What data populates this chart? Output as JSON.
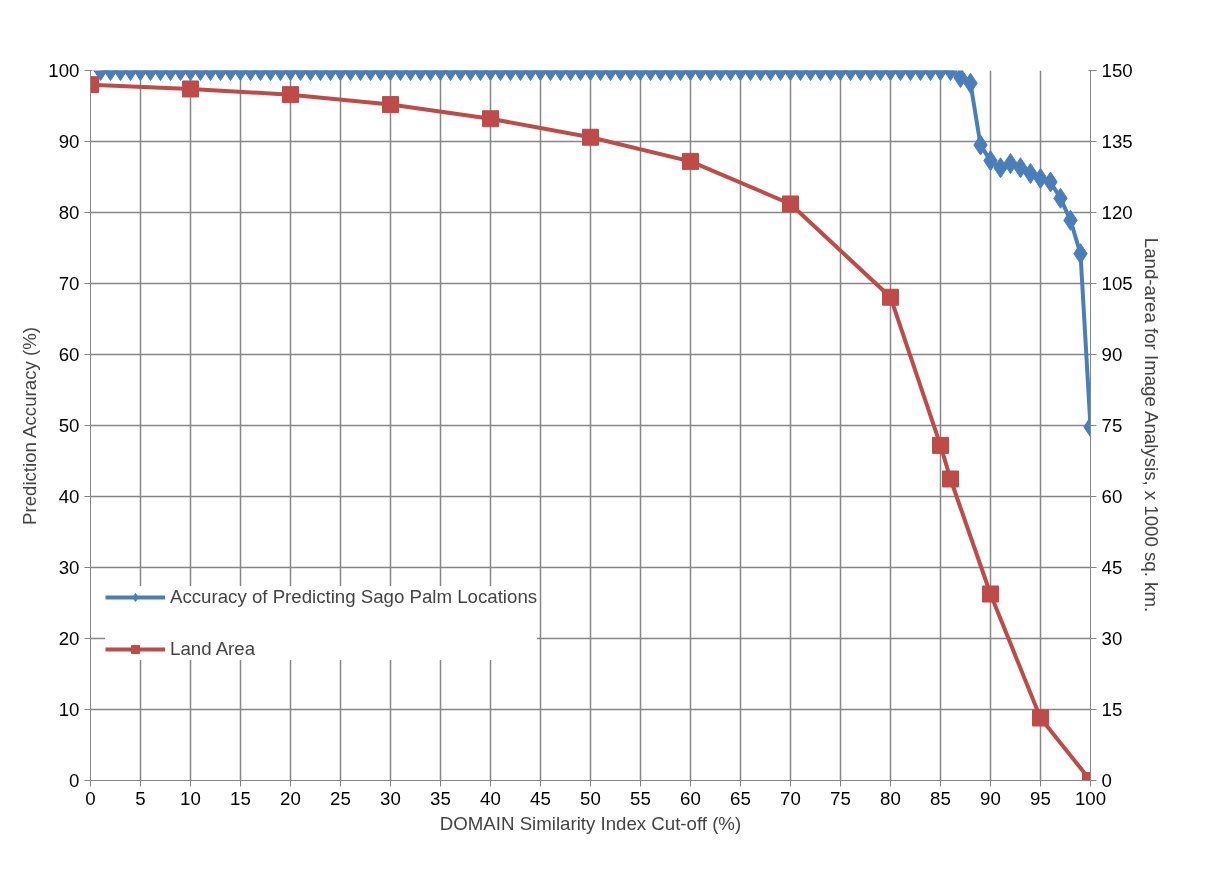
{
  "chart_data": {
    "type": "line",
    "xlabel": "DOMAIN Similarity Index Cut-off (%)",
    "ylabel": "Prediction Accuracy (%)",
    "y2label": "Land-area for Image Analysis, x 1000 sq. km.",
    "xlim": [
      0,
      100
    ],
    "xticks": [
      0,
      5,
      10,
      15,
      20,
      25,
      30,
      35,
      40,
      45,
      50,
      55,
      60,
      65,
      70,
      75,
      80,
      85,
      90,
      95,
      100
    ],
    "ylim": [
      0,
      100
    ],
    "yticks": [
      0,
      10,
      20,
      30,
      40,
      50,
      60,
      70,
      80,
      90,
      100
    ],
    "y2lim": [
      0,
      150
    ],
    "y2ticks": [
      0,
      15,
      30,
      45,
      60,
      75,
      90,
      105,
      120,
      135,
      150
    ],
    "grid": true,
    "legend": "left",
    "line_style": "solid",
    "series": [
      {
        "name": "Accuracy of Predicting Sago Palm Locations",
        "color": "#4a7ebb",
        "marker": "diamond",
        "x": [
          1,
          2,
          3,
          4,
          5,
          6,
          7,
          8,
          9,
          10,
          11,
          12,
          13,
          14,
          15,
          16,
          17,
          18,
          19,
          20,
          21,
          22,
          23,
          24,
          25,
          26,
          27,
          28,
          29,
          30,
          31,
          32,
          33,
          34,
          35,
          36,
          37,
          38,
          39,
          40,
          41,
          42,
          43,
          44,
          45,
          46,
          47,
          48,
          49,
          50,
          51,
          52,
          53,
          54,
          55,
          56,
          57,
          58,
          59,
          60,
          61,
          62,
          63,
          64,
          65,
          66,
          67,
          68,
          69,
          70,
          71,
          72,
          73,
          74,
          75,
          76,
          77,
          78,
          79,
          80,
          81,
          82,
          83,
          84,
          85,
          86,
          87,
          88,
          89,
          90,
          91,
          92,
          93,
          94,
          95,
          96,
          97,
          98,
          99,
          100
        ],
        "values": [
          100,
          100,
          100,
          100,
          100,
          100,
          100,
          100,
          100,
          100,
          100,
          100,
          100,
          100,
          100,
          100,
          100,
          100,
          100,
          100,
          100,
          100,
          100,
          100,
          100,
          100,
          100,
          100,
          100,
          100,
          100,
          100,
          100,
          100,
          100,
          100,
          100,
          100,
          100,
          100,
          100,
          100,
          100,
          100,
          100,
          100,
          100,
          100,
          100,
          100,
          100,
          100,
          100,
          100,
          100,
          100,
          100,
          100,
          100,
          100,
          100,
          100,
          100,
          100,
          100,
          100,
          100,
          100,
          100,
          100,
          100,
          100,
          100,
          100,
          100,
          100,
          100,
          100,
          100,
          100,
          100,
          100,
          100,
          100,
          100,
          100,
          99,
          98.2,
          89.5,
          87.3,
          86.3,
          86.9,
          86.3,
          85.5,
          84.8,
          84.3,
          82,
          78.9,
          74.2,
          49.8
        ]
      },
      {
        "name": "Land Area",
        "color": "#be4b48",
        "marker": "square",
        "axis": "y2",
        "x": [
          0,
          10,
          20,
          30,
          40,
          50,
          60,
          70,
          80,
          85,
          86,
          90,
          95,
          100
        ],
        "values": [
          147,
          146.1,
          144.9,
          142.8,
          139.8,
          135.9,
          130.8,
          121.8,
          102.1,
          70.8,
          63.7,
          39.4,
          13.2,
          0
        ]
      }
    ]
  }
}
